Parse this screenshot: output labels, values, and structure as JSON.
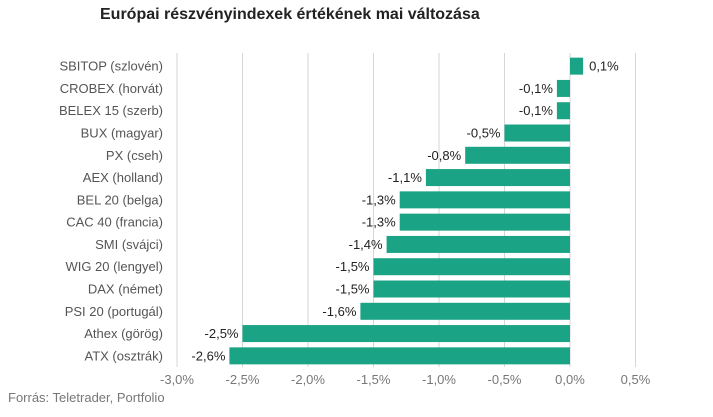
{
  "chart_data": {
    "type": "bar",
    "orientation": "horizontal",
    "title": "Európai részvényindexek értékének mai változása",
    "source": "Forrás: Teletrader, Portfolio",
    "categories": [
      "SBITOP (szlovén)",
      "CROBEX (horvát)",
      "BELEX 15 (szerb)",
      "BUX (magyar)",
      "PX (cseh)",
      "AEX (holland)",
      "BEL 20 (belga)",
      "CAC 40 (francia)",
      "SMI (svájci)",
      "WIG 20 (lengyel)",
      "DAX (német)",
      "PSI 20 (portugál)",
      "Athex (görög)",
      "ATX (osztrák)"
    ],
    "values": [
      0.1,
      -0.1,
      -0.1,
      -0.5,
      -0.8,
      -1.1,
      -1.3,
      -1.3,
      -1.4,
      -1.5,
      -1.5,
      -1.6,
      -2.5,
      -2.6
    ],
    "value_labels": [
      "0,1%",
      "-0,1%",
      "-0,1%",
      "-0,5%",
      "-0,8%",
      "-1,1%",
      "-1,3%",
      "-1,3%",
      "-1,4%",
      "-1,5%",
      "-1,5%",
      "-1,6%",
      "-2,5%",
      "-2,6%"
    ],
    "xlim": [
      -3.0,
      0.5
    ],
    "xticks": [
      -3.0,
      -2.5,
      -2.0,
      -1.5,
      -1.0,
      -0.5,
      0.0,
      0.5
    ],
    "xtick_labels": [
      "-3,0%",
      "-2,5%",
      "-2,0%",
      "-1,5%",
      "-1,0%",
      "-0,5%",
      "0,0%",
      "0,5%"
    ],
    "grid": true,
    "bar_color": "#1aa384"
  }
}
